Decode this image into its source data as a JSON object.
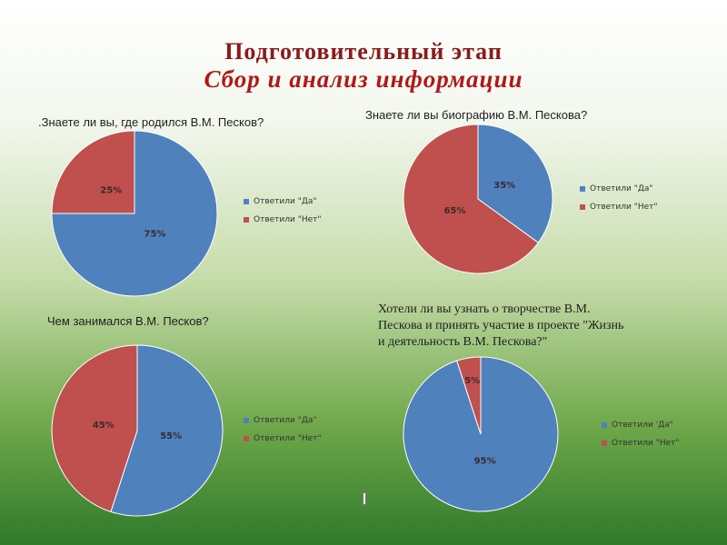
{
  "slide": {
    "title": "Подготовительный этап",
    "subtitle": "Сбор и анализ информации"
  },
  "colors": {
    "yes": "#4f81bd",
    "no": "#c0504d"
  },
  "legend": {
    "yes": "Ответили \"Да\"",
    "no": "Ответили \"Нет\""
  },
  "chart_data": [
    {
      "type": "pie",
      "title": ".Знаете ли вы, где родился В.М. Песков?",
      "categories": [
        "Ответили \"Да\"",
        "Ответили \"Нет\""
      ],
      "values": [
        75,
        25
      ],
      "labels": [
        "75%",
        "25%"
      ],
      "legend": "right"
    },
    {
      "type": "pie",
      "title": "Знаете ли вы  биографию В.М. Пескова?",
      "categories": [
        "Ответили \"Да\"",
        "Ответили \"Нет\""
      ],
      "values": [
        35,
        65
      ],
      "labels": [
        "35%",
        "65%"
      ],
      "legend": "right"
    },
    {
      "type": "pie",
      "title": "Чем  занимался В.М. Песков?",
      "categories": [
        "Ответили \"Да\"",
        "Ответили \"Нет\""
      ],
      "values": [
        55,
        45
      ],
      "labels": [
        "55%",
        "45%"
      ],
      "legend": "right"
    },
    {
      "type": "pie",
      "title": "Хотели ли вы узнать о творчестве В.М. Пескова и принять участие в проекте \"Жизнь и деятельность В.М. Пескова?\"",
      "categories": [
        "Ответили 'Да\"",
        "Ответили \"Нет\""
      ],
      "values": [
        95,
        5
      ],
      "labels": [
        "95%",
        "5%"
      ],
      "legend": "right"
    }
  ]
}
